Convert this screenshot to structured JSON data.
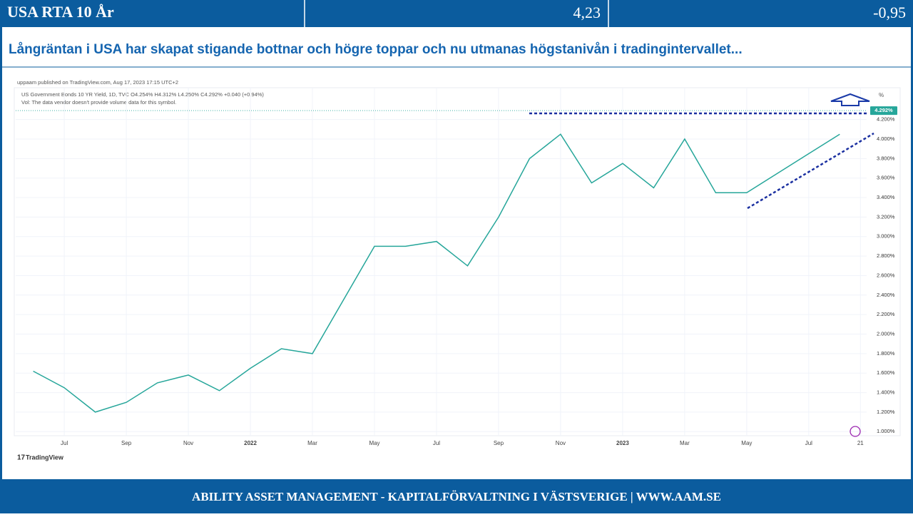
{
  "header": {
    "title": "USA RTA 10 År",
    "value": "4,23",
    "change": "-0,95"
  },
  "subtitle": "Långräntan i USA har skapat stigande bottnar och högre toppar och nu utmanas högstanivån i tradingintervallet...",
  "chart_data": {
    "type": "line",
    "source": "uppaam published on TradingView.com, Aug 17, 2023 17:15 UTC+2",
    "symbol_line": "US Government Bonds 10 YR Yield, 1D, TVC  O4.254%  H4.312%  L4.250%  C4.292%  +0.040 (+0.94%)",
    "volume_note": "Vol: The data vendor doesn't provide volume data for this symbol.",
    "unit": "%",
    "brand": "TradingView",
    "color": "#26a69a",
    "x": [
      "2021-06",
      "2021-07",
      "2021-08",
      "2021-09",
      "2021-10",
      "2021-11",
      "2021-12",
      "2022-01",
      "2022-02",
      "2022-03",
      "2022-04",
      "2022-05",
      "2022-06",
      "2022-07",
      "2022-08",
      "2022-09",
      "2022-10",
      "2022-11",
      "2022-12",
      "2023-01",
      "2023-02",
      "2023-03",
      "2023-04",
      "2023-05",
      "2023-06",
      "2023-07",
      "2023-08"
    ],
    "values": [
      1.62,
      1.45,
      1.2,
      1.3,
      1.5,
      1.58,
      1.42,
      1.65,
      1.85,
      1.8,
      2.35,
      2.9,
      2.9,
      2.95,
      2.7,
      3.2,
      3.8,
      4.05,
      3.55,
      3.75,
      3.5,
      4.0,
      3.45,
      3.45,
      3.65,
      3.85,
      4.05
    ],
    "last_price": 4.292,
    "last_price_label": "4.292%",
    "xlim": [
      "2021-05-14",
      "2023-08-27"
    ],
    "xticks": [
      {
        "value": "2021-07",
        "label": "Jul"
      },
      {
        "value": "2021-09",
        "label": "Sep"
      },
      {
        "value": "2021-11",
        "label": "Nov"
      },
      {
        "value": "2022-01",
        "label": "2022"
      },
      {
        "value": "2022-03",
        "label": "Mar"
      },
      {
        "value": "2022-05",
        "label": "May"
      },
      {
        "value": "2022-07",
        "label": "Jul"
      },
      {
        "value": "2022-09",
        "label": "Sep"
      },
      {
        "value": "2022-11",
        "label": "Nov"
      },
      {
        "value": "2023-01",
        "label": "2023"
      },
      {
        "value": "2023-03",
        "label": "Mar"
      },
      {
        "value": "2023-05",
        "label": "May"
      },
      {
        "value": "2023-07",
        "label": "Jul"
      },
      {
        "value": "2023-08-21",
        "label": "21"
      }
    ],
    "ylim": [
      0.98,
      4.49
    ],
    "yticks": [
      {
        "value": 1,
        "label": "1.000%"
      },
      {
        "value": 1.2,
        "label": "1.200%"
      },
      {
        "value": 1.4,
        "label": "1.400%"
      },
      {
        "value": 1.6,
        "label": "1.600%"
      },
      {
        "value": 1.8,
        "label": "1.800%"
      },
      {
        "value": 2,
        "label": "2.000%"
      },
      {
        "value": 2.2,
        "label": "2.200%"
      },
      {
        "value": 2.4,
        "label": "2.400%"
      },
      {
        "value": 2.6,
        "label": "2.600%"
      },
      {
        "value": 2.8,
        "label": "2.800%"
      },
      {
        "value": 3,
        "label": "3.000%"
      },
      {
        "value": 3.2,
        "label": "3.200%"
      },
      {
        "value": 3.4,
        "label": "3.400%"
      },
      {
        "value": 3.6,
        "label": "3.600%"
      },
      {
        "value": 3.8,
        "label": "3.800%"
      },
      {
        "value": 4,
        "label": "4.000%"
      },
      {
        "value": 4.2,
        "label": "4.200%"
      }
    ],
    "grid": true
  },
  "footer": "ABILITY ASSET MANAGEMENT -  KAPITALFÖRVALTNING I VÄSTSVERIGE   |   WWW.AAM.SE"
}
